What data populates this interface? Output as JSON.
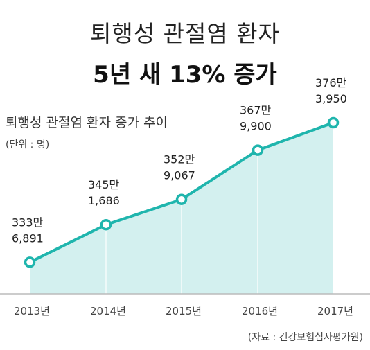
{
  "header": {
    "title_line1": "퇴행성 관절염 환자",
    "title_line2": "5년 새 13% 증가"
  },
  "chart_data": {
    "type": "area",
    "title": "퇴행성 관절염 환자 증가 추이",
    "unit_label": "(단위 : 명)",
    "categories": [
      "2013년",
      "2014년",
      "2015년",
      "2016년",
      "2017년"
    ],
    "values": [
      3336891,
      3451686,
      3529067,
      3679900,
      3763950
    ],
    "data_labels": [
      [
        "333만",
        "6,891"
      ],
      [
        "345만",
        "1,686"
      ],
      [
        "352만",
        "9,067"
      ],
      [
        "367만",
        "9,900"
      ],
      [
        "376만",
        "3,950"
      ]
    ],
    "ylim": [
      3240000,
      3800000
    ],
    "colors": {
      "line": "#1fb5ad",
      "fill": "#d3f0ef",
      "marker_fill": "#ffffff"
    },
    "grid": false,
    "legend": "none"
  },
  "footer": {
    "source": "(자료 : 건강보험심사평가원)"
  }
}
